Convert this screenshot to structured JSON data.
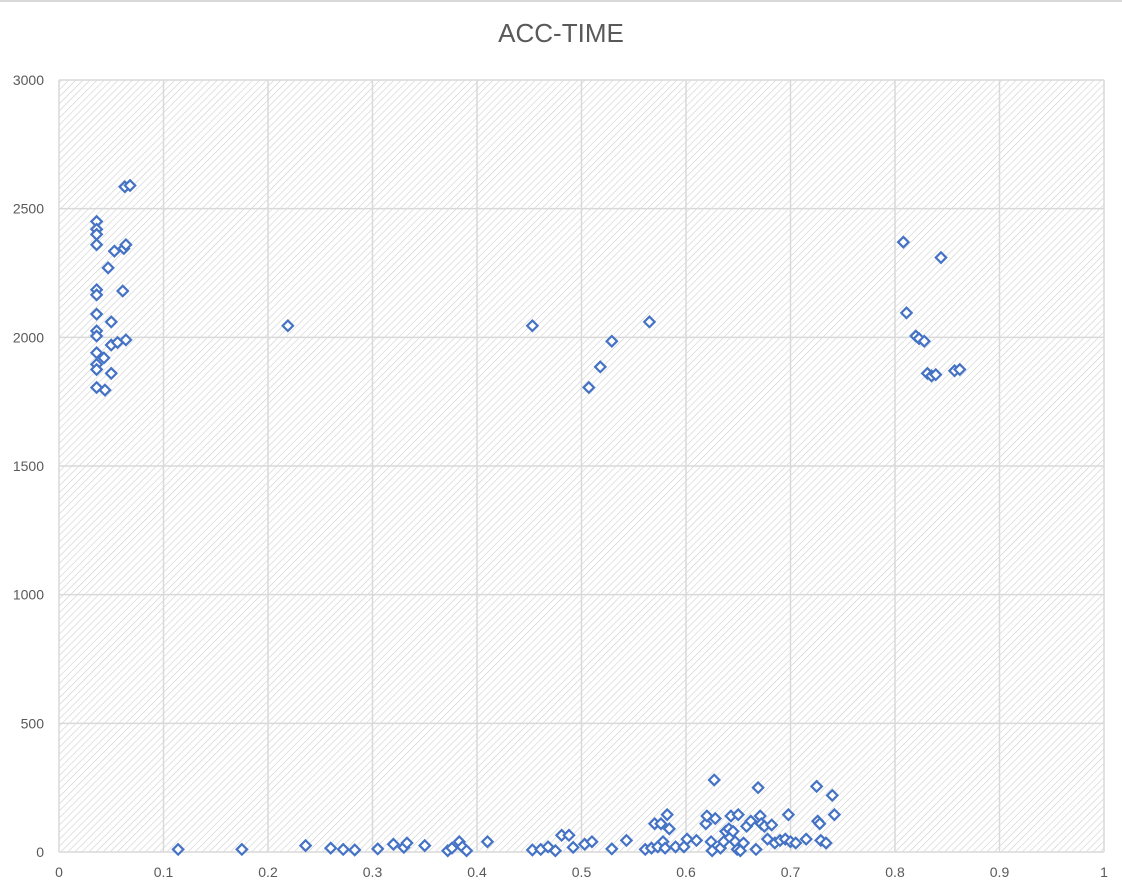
{
  "chart_data": {
    "type": "scatter",
    "title": "ACC-TIME",
    "xlabel": "",
    "ylabel": "",
    "xlim": [
      0,
      1
    ],
    "ylim": [
      0,
      3000
    ],
    "x_ticks": [
      "0",
      "0.1",
      "0.2",
      "0.3",
      "0.4",
      "0.5",
      "0.6",
      "0.7",
      "0.8",
      "0.9",
      "1"
    ],
    "y_ticks": [
      "0",
      "500",
      "1000",
      "1500",
      "2000",
      "2500",
      "3000"
    ],
    "grid": true,
    "legend": "none",
    "marker": "diamond-hollow",
    "marker_color": "#4472c4",
    "series": [
      {
        "points": [
          [
            0.036,
            2450
          ],
          [
            0.036,
            2420
          ],
          [
            0.036,
            2400
          ],
          [
            0.036,
            2360
          ],
          [
            0.036,
            2185
          ],
          [
            0.036,
            2165
          ],
          [
            0.036,
            2090
          ],
          [
            0.036,
            2025
          ],
          [
            0.036,
            2005
          ],
          [
            0.036,
            1940
          ],
          [
            0.036,
            1895
          ],
          [
            0.036,
            1875
          ],
          [
            0.036,
            1805
          ],
          [
            0.043,
            1920
          ],
          [
            0.044,
            1795
          ],
          [
            0.047,
            2270
          ],
          [
            0.05,
            2060
          ],
          [
            0.05,
            1970
          ],
          [
            0.05,
            1860
          ],
          [
            0.053,
            2335
          ],
          [
            0.056,
            1980
          ],
          [
            0.061,
            2180
          ],
          [
            0.062,
            2345
          ],
          [
            0.063,
            2585
          ],
          [
            0.064,
            1990
          ],
          [
            0.064,
            2360
          ],
          [
            0.068,
            2590
          ],
          [
            0.219,
            2045
          ],
          [
            0.453,
            2045
          ],
          [
            0.507,
            1805
          ],
          [
            0.518,
            1885
          ],
          [
            0.529,
            1985
          ],
          [
            0.565,
            2060
          ],
          [
            0.808,
            2370
          ],
          [
            0.811,
            2095
          ],
          [
            0.82,
            2005
          ],
          [
            0.823,
            1995
          ],
          [
            0.828,
            1985
          ],
          [
            0.831,
            1860
          ],
          [
            0.835,
            1850
          ],
          [
            0.839,
            1855
          ],
          [
            0.844,
            2310
          ],
          [
            0.857,
            1870
          ],
          [
            0.862,
            1875
          ],
          [
            0.114,
            10
          ],
          [
            0.175,
            10
          ],
          [
            0.236,
            25
          ],
          [
            0.26,
            15
          ],
          [
            0.272,
            10
          ],
          [
            0.283,
            8
          ],
          [
            0.305,
            12
          ],
          [
            0.32,
            30
          ],
          [
            0.33,
            18
          ],
          [
            0.333,
            35
          ],
          [
            0.35,
            25
          ],
          [
            0.372,
            5
          ],
          [
            0.376,
            15
          ],
          [
            0.383,
            40
          ],
          [
            0.386,
            20
          ],
          [
            0.39,
            5
          ],
          [
            0.41,
            40
          ],
          [
            0.453,
            8
          ],
          [
            0.461,
            10
          ],
          [
            0.468,
            20
          ],
          [
            0.475,
            5
          ],
          [
            0.481,
            65
          ],
          [
            0.488,
            65
          ],
          [
            0.492,
            18
          ],
          [
            0.503,
            30
          ],
          [
            0.51,
            40
          ],
          [
            0.529,
            12
          ],
          [
            0.543,
            45
          ],
          [
            0.561,
            10
          ],
          [
            0.567,
            15
          ],
          [
            0.57,
            110
          ],
          [
            0.573,
            20
          ],
          [
            0.576,
            110
          ],
          [
            0.578,
            40
          ],
          [
            0.58,
            15
          ],
          [
            0.582,
            145
          ],
          [
            0.584,
            90
          ],
          [
            0.59,
            20
          ],
          [
            0.598,
            20
          ],
          [
            0.601,
            50
          ],
          [
            0.61,
            45
          ],
          [
            0.619,
            110
          ],
          [
            0.62,
            140
          ],
          [
            0.624,
            40
          ],
          [
            0.625,
            5
          ],
          [
            0.627,
            280
          ],
          [
            0.628,
            130
          ],
          [
            0.633,
            15
          ],
          [
            0.636,
            40
          ],
          [
            0.638,
            80
          ],
          [
            0.641,
            90
          ],
          [
            0.643,
            140
          ],
          [
            0.645,
            80
          ],
          [
            0.647,
            40
          ],
          [
            0.649,
            10
          ],
          [
            0.65,
            145
          ],
          [
            0.652,
            5
          ],
          [
            0.655,
            35
          ],
          [
            0.658,
            100
          ],
          [
            0.662,
            120
          ],
          [
            0.667,
            10
          ],
          [
            0.669,
            250
          ],
          [
            0.671,
            140
          ],
          [
            0.672,
            110
          ],
          [
            0.675,
            100
          ],
          [
            0.678,
            50
          ],
          [
            0.682,
            105
          ],
          [
            0.685,
            35
          ],
          [
            0.69,
            45
          ],
          [
            0.695,
            50
          ],
          [
            0.698,
            145
          ],
          [
            0.7,
            40
          ],
          [
            0.705,
            35
          ],
          [
            0.715,
            50
          ],
          [
            0.725,
            255
          ],
          [
            0.726,
            120
          ],
          [
            0.728,
            110
          ],
          [
            0.729,
            45
          ],
          [
            0.734,
            35
          ],
          [
            0.74,
            220
          ],
          [
            0.742,
            145
          ]
        ]
      }
    ]
  }
}
